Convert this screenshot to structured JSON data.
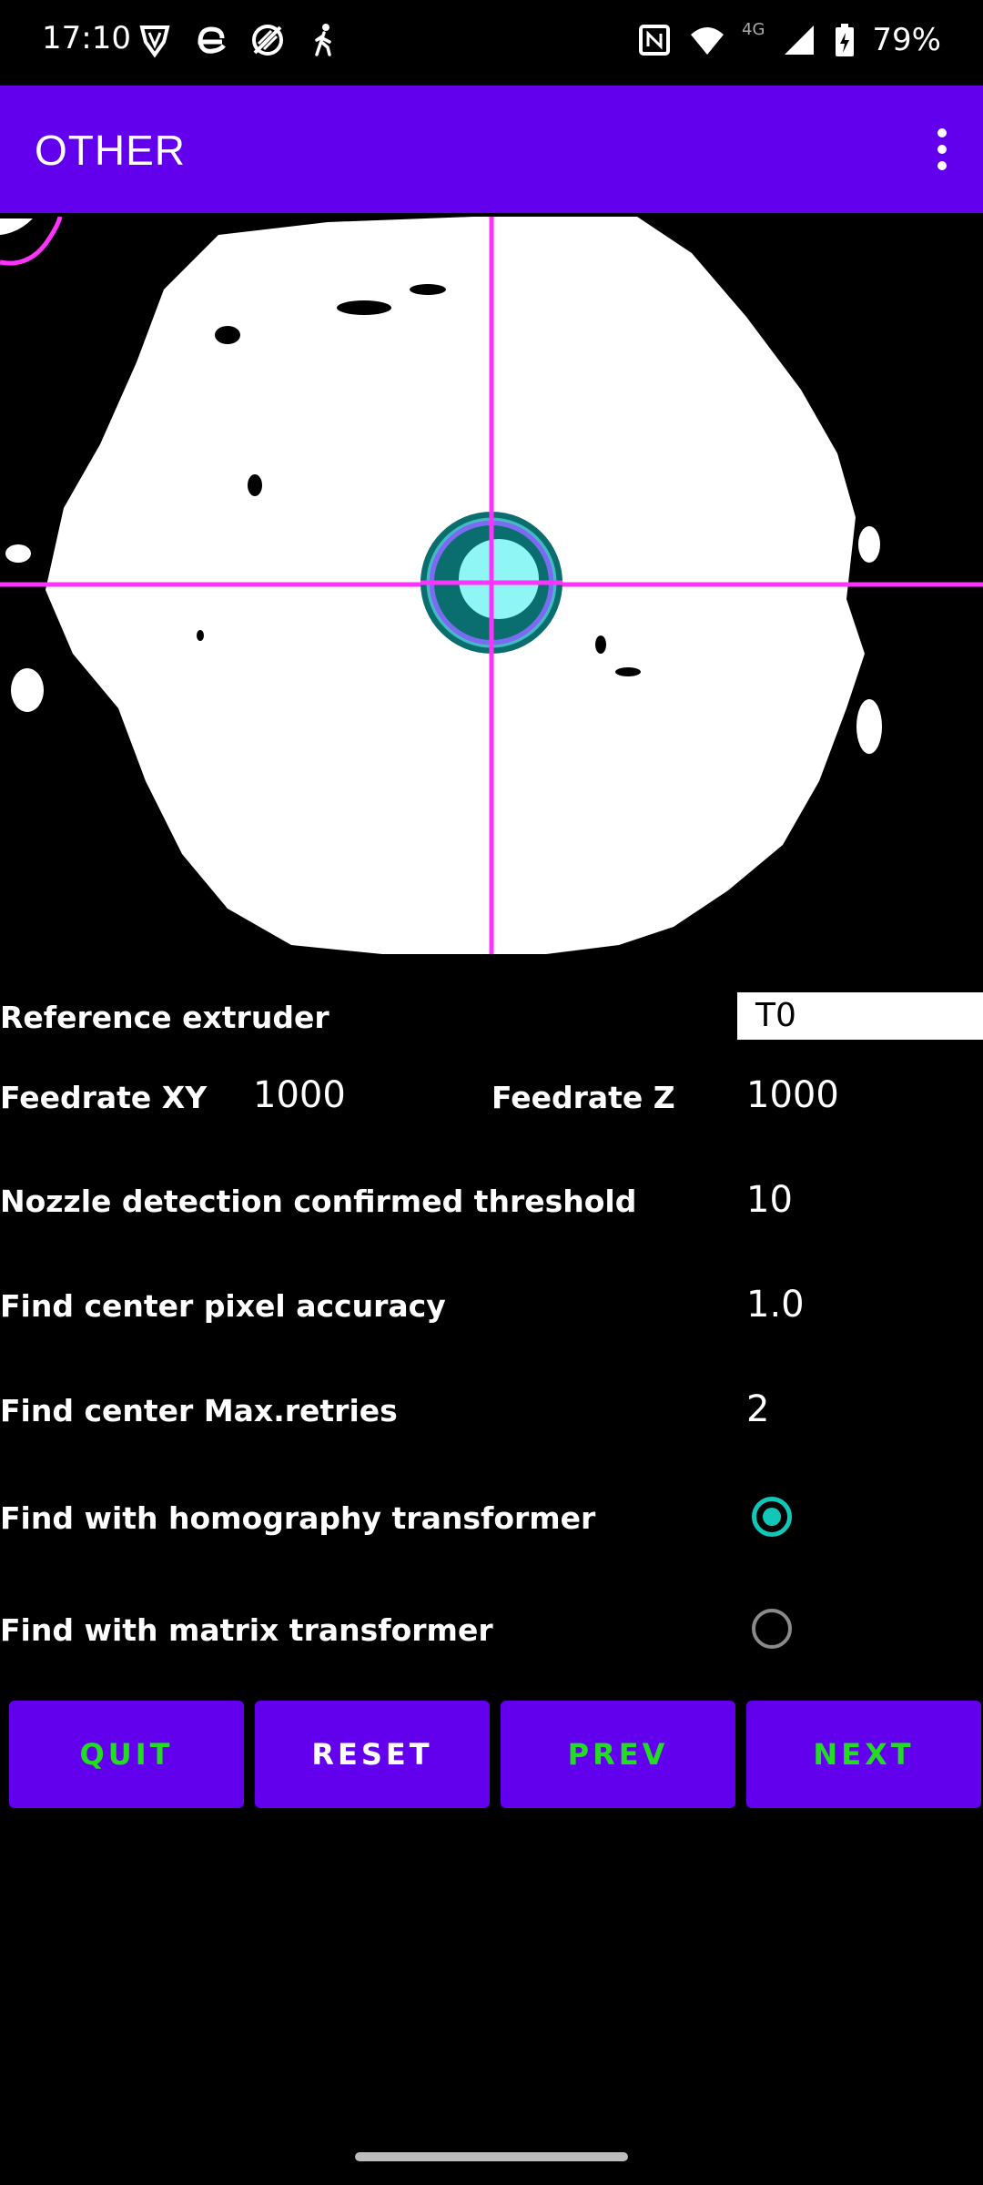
{
  "status": {
    "time": "17:10",
    "network": "4G",
    "battery": "79%",
    "left_icons": [
      "shield-v-icon",
      "e-logo-icon",
      "no-sim-icon",
      "walking-icon"
    ],
    "right_icons": [
      "nfc-icon",
      "wifi-icon",
      "signal-icon",
      "battery-charging-icon"
    ]
  },
  "app_bar": {
    "title": "OTHER",
    "menu_icon": "more-vert-icon"
  },
  "form": {
    "reference_extruder": {
      "label": "Reference extruder",
      "value": "T0"
    },
    "feedrate_xy": {
      "label": "Feedrate XY",
      "value": "1000"
    },
    "feedrate_z": {
      "label": "Feedrate Z",
      "value": "1000"
    },
    "nozzle_threshold": {
      "label": "Nozzle detection confirmed threshold",
      "value": "10"
    },
    "pixel_accuracy": {
      "label": "Find center pixel accuracy",
      "value": "1.0"
    },
    "max_retries": {
      "label": "Find center Max.retries",
      "value": "2"
    },
    "homography": {
      "label": "Find with homography transformer",
      "selected": true
    },
    "matrix": {
      "label": "Find with matrix transformer",
      "selected": false
    }
  },
  "buttons": {
    "quit": "QUIT",
    "reset": "RESET",
    "prev": "PREV",
    "next": "NEXT"
  },
  "colors": {
    "accent": "#6200ee",
    "crosshair": "#ff33ff",
    "radio_on": "#12c6b8",
    "btn_green": "#22dd22"
  }
}
